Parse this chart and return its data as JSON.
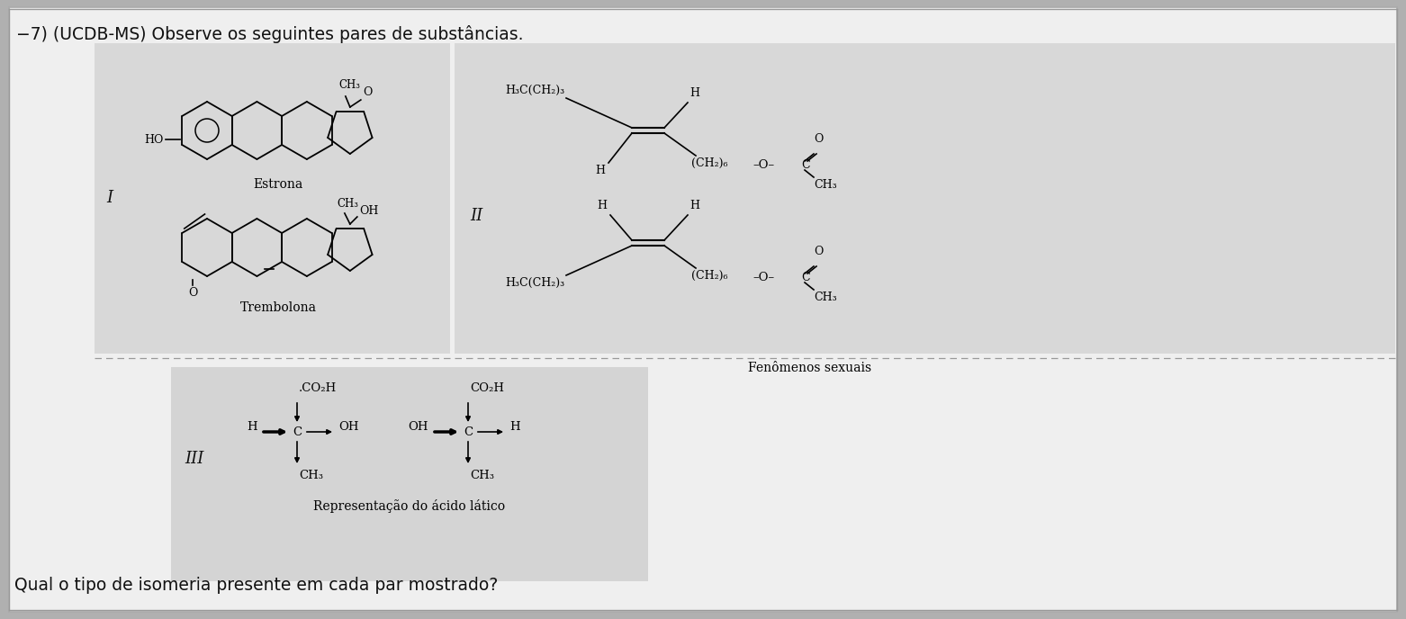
{
  "title": "−7) (UCDB-MS) Observe os seguintes pares de substâncias.",
  "question": "Qual o tipo de isomeria presente em cada par mostrado?",
  "bg_color": "#b0b0b0",
  "paper_color": "#efefef",
  "box_left_color": "#d8d8d8",
  "box_right_color": "#d8d8d8",
  "box_bottom_color": "#d4d4d4",
  "text_color": "#111111",
  "roman_I": "I",
  "roman_II": "II",
  "roman_III": "III",
  "label_estrona": "Estrona",
  "label_trembolona": "Trembolona",
  "label_fenomenos": "Fenômenos sexuais",
  "label_acido": "Representação do ácido lático"
}
